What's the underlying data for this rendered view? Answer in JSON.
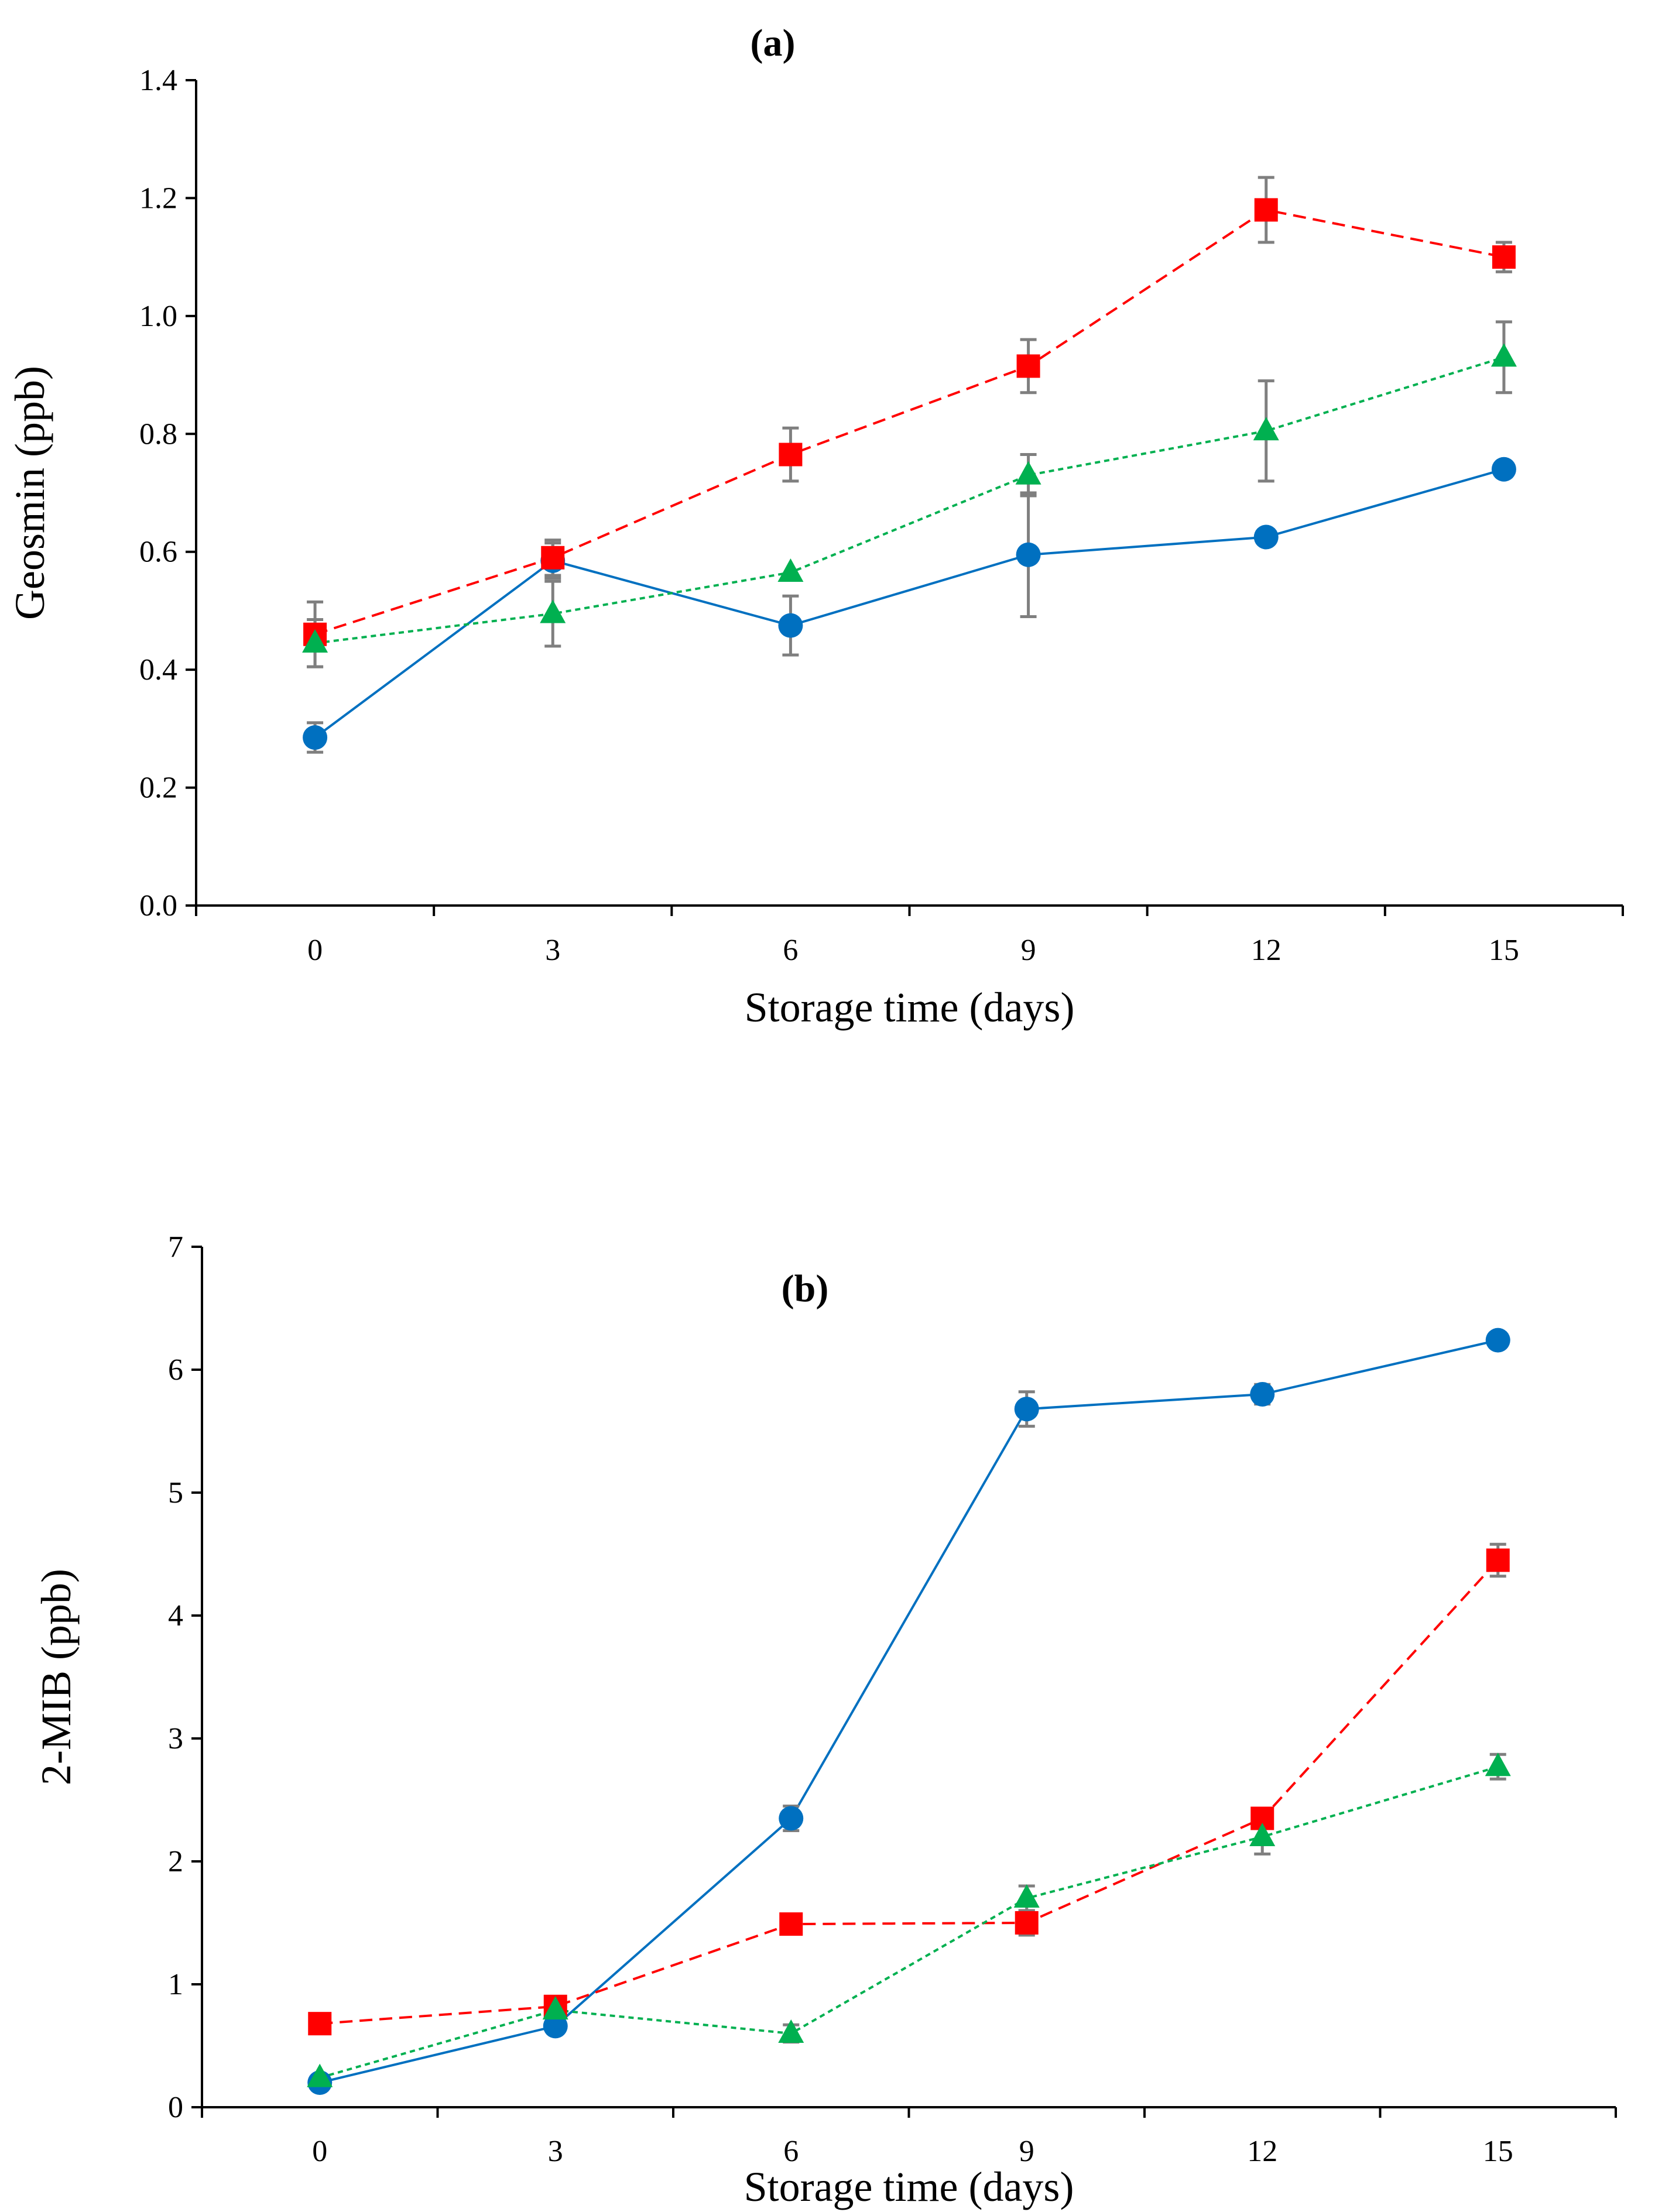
{
  "chart_data": [
    {
      "type": "line",
      "panel": "a",
      "title": "(a)",
      "xlabel": "Storage time (days)",
      "ylabel": "Geosmin (ppb)",
      "x": [
        0,
        3,
        6,
        9,
        12,
        15
      ],
      "x_tick_labels": [
        "0",
        "3",
        "6",
        "9",
        "12",
        "15"
      ],
      "y_tick_labels": [
        "0.0",
        "0.2",
        "0.4",
        "0.6",
        "0.8",
        "1.0",
        "1.2",
        "1.4"
      ],
      "ylim": [
        0,
        1.4
      ],
      "yticks": [
        0,
        0.2,
        0.4,
        0.6,
        0.8,
        1.0,
        1.2,
        1.4
      ],
      "grid": false,
      "series": [
        {
          "name": "circle-blue-solid",
          "color": "#0070C0",
          "marker": "circle",
          "line": "solid",
          "values": [
            0.285,
            0.585,
            0.475,
            0.595,
            0.625,
            0.74
          ],
          "errors": [
            0.025,
            0.03,
            0.05,
            0.105,
            0.0,
            0.0
          ]
        },
        {
          "name": "square-red-dashed",
          "color": "#FF0000",
          "marker": "square",
          "line": "dashed",
          "values": [
            0.46,
            0.59,
            0.765,
            0.915,
            1.18,
            1.1
          ],
          "errors": [
            0.055,
            0.03,
            0.045,
            0.045,
            0.055,
            0.025
          ]
        },
        {
          "name": "triangle-green-dotted",
          "color": "#00B050",
          "marker": "triangle",
          "line": "dotted",
          "values": [
            0.445,
            0.495,
            0.565,
            0.73,
            0.805,
            0.93
          ],
          "errors": [
            0.04,
            0.055,
            0.0,
            0.035,
            0.085,
            0.06
          ]
        }
      ]
    },
    {
      "type": "line",
      "panel": "b",
      "title": "(b)",
      "xlabel": "Storage time (days)",
      "ylabel": "2-MIB (ppb)",
      "x": [
        0,
        3,
        6,
        9,
        12,
        15
      ],
      "x_tick_labels": [
        "0",
        "3",
        "6",
        "9",
        "12",
        "15"
      ],
      "y_tick_labels": [
        "0",
        "1",
        "2",
        "3",
        "4",
        "5",
        "6",
        "7"
      ],
      "ylim": [
        0,
        7
      ],
      "yticks": [
        0,
        1,
        2,
        3,
        4,
        5,
        6,
        7
      ],
      "grid": false,
      "series": [
        {
          "name": "circle-blue-solid",
          "color": "#0070C0",
          "marker": "circle",
          "line": "solid",
          "values": [
            0.2,
            0.66,
            2.35,
            5.68,
            5.8,
            6.24
          ],
          "errors": [
            0.03,
            0.04,
            0.1,
            0.14,
            0.08,
            0.0
          ]
        },
        {
          "name": "square-red-dashed",
          "color": "#FF0000",
          "marker": "square",
          "line": "dashed",
          "values": [
            0.68,
            0.82,
            1.49,
            1.5,
            2.35,
            4.45
          ],
          "errors": [
            0.0,
            0.04,
            0.0,
            0.1,
            0.0,
            0.13
          ]
        },
        {
          "name": "triangle-green-dotted",
          "color": "#00B050",
          "marker": "triangle",
          "line": "dotted",
          "values": [
            0.24,
            0.79,
            0.6,
            1.7,
            2.2,
            2.77
          ],
          "errors": [
            0.0,
            0.0,
            0.07,
            0.1,
            0.14,
            0.1
          ]
        }
      ]
    }
  ]
}
